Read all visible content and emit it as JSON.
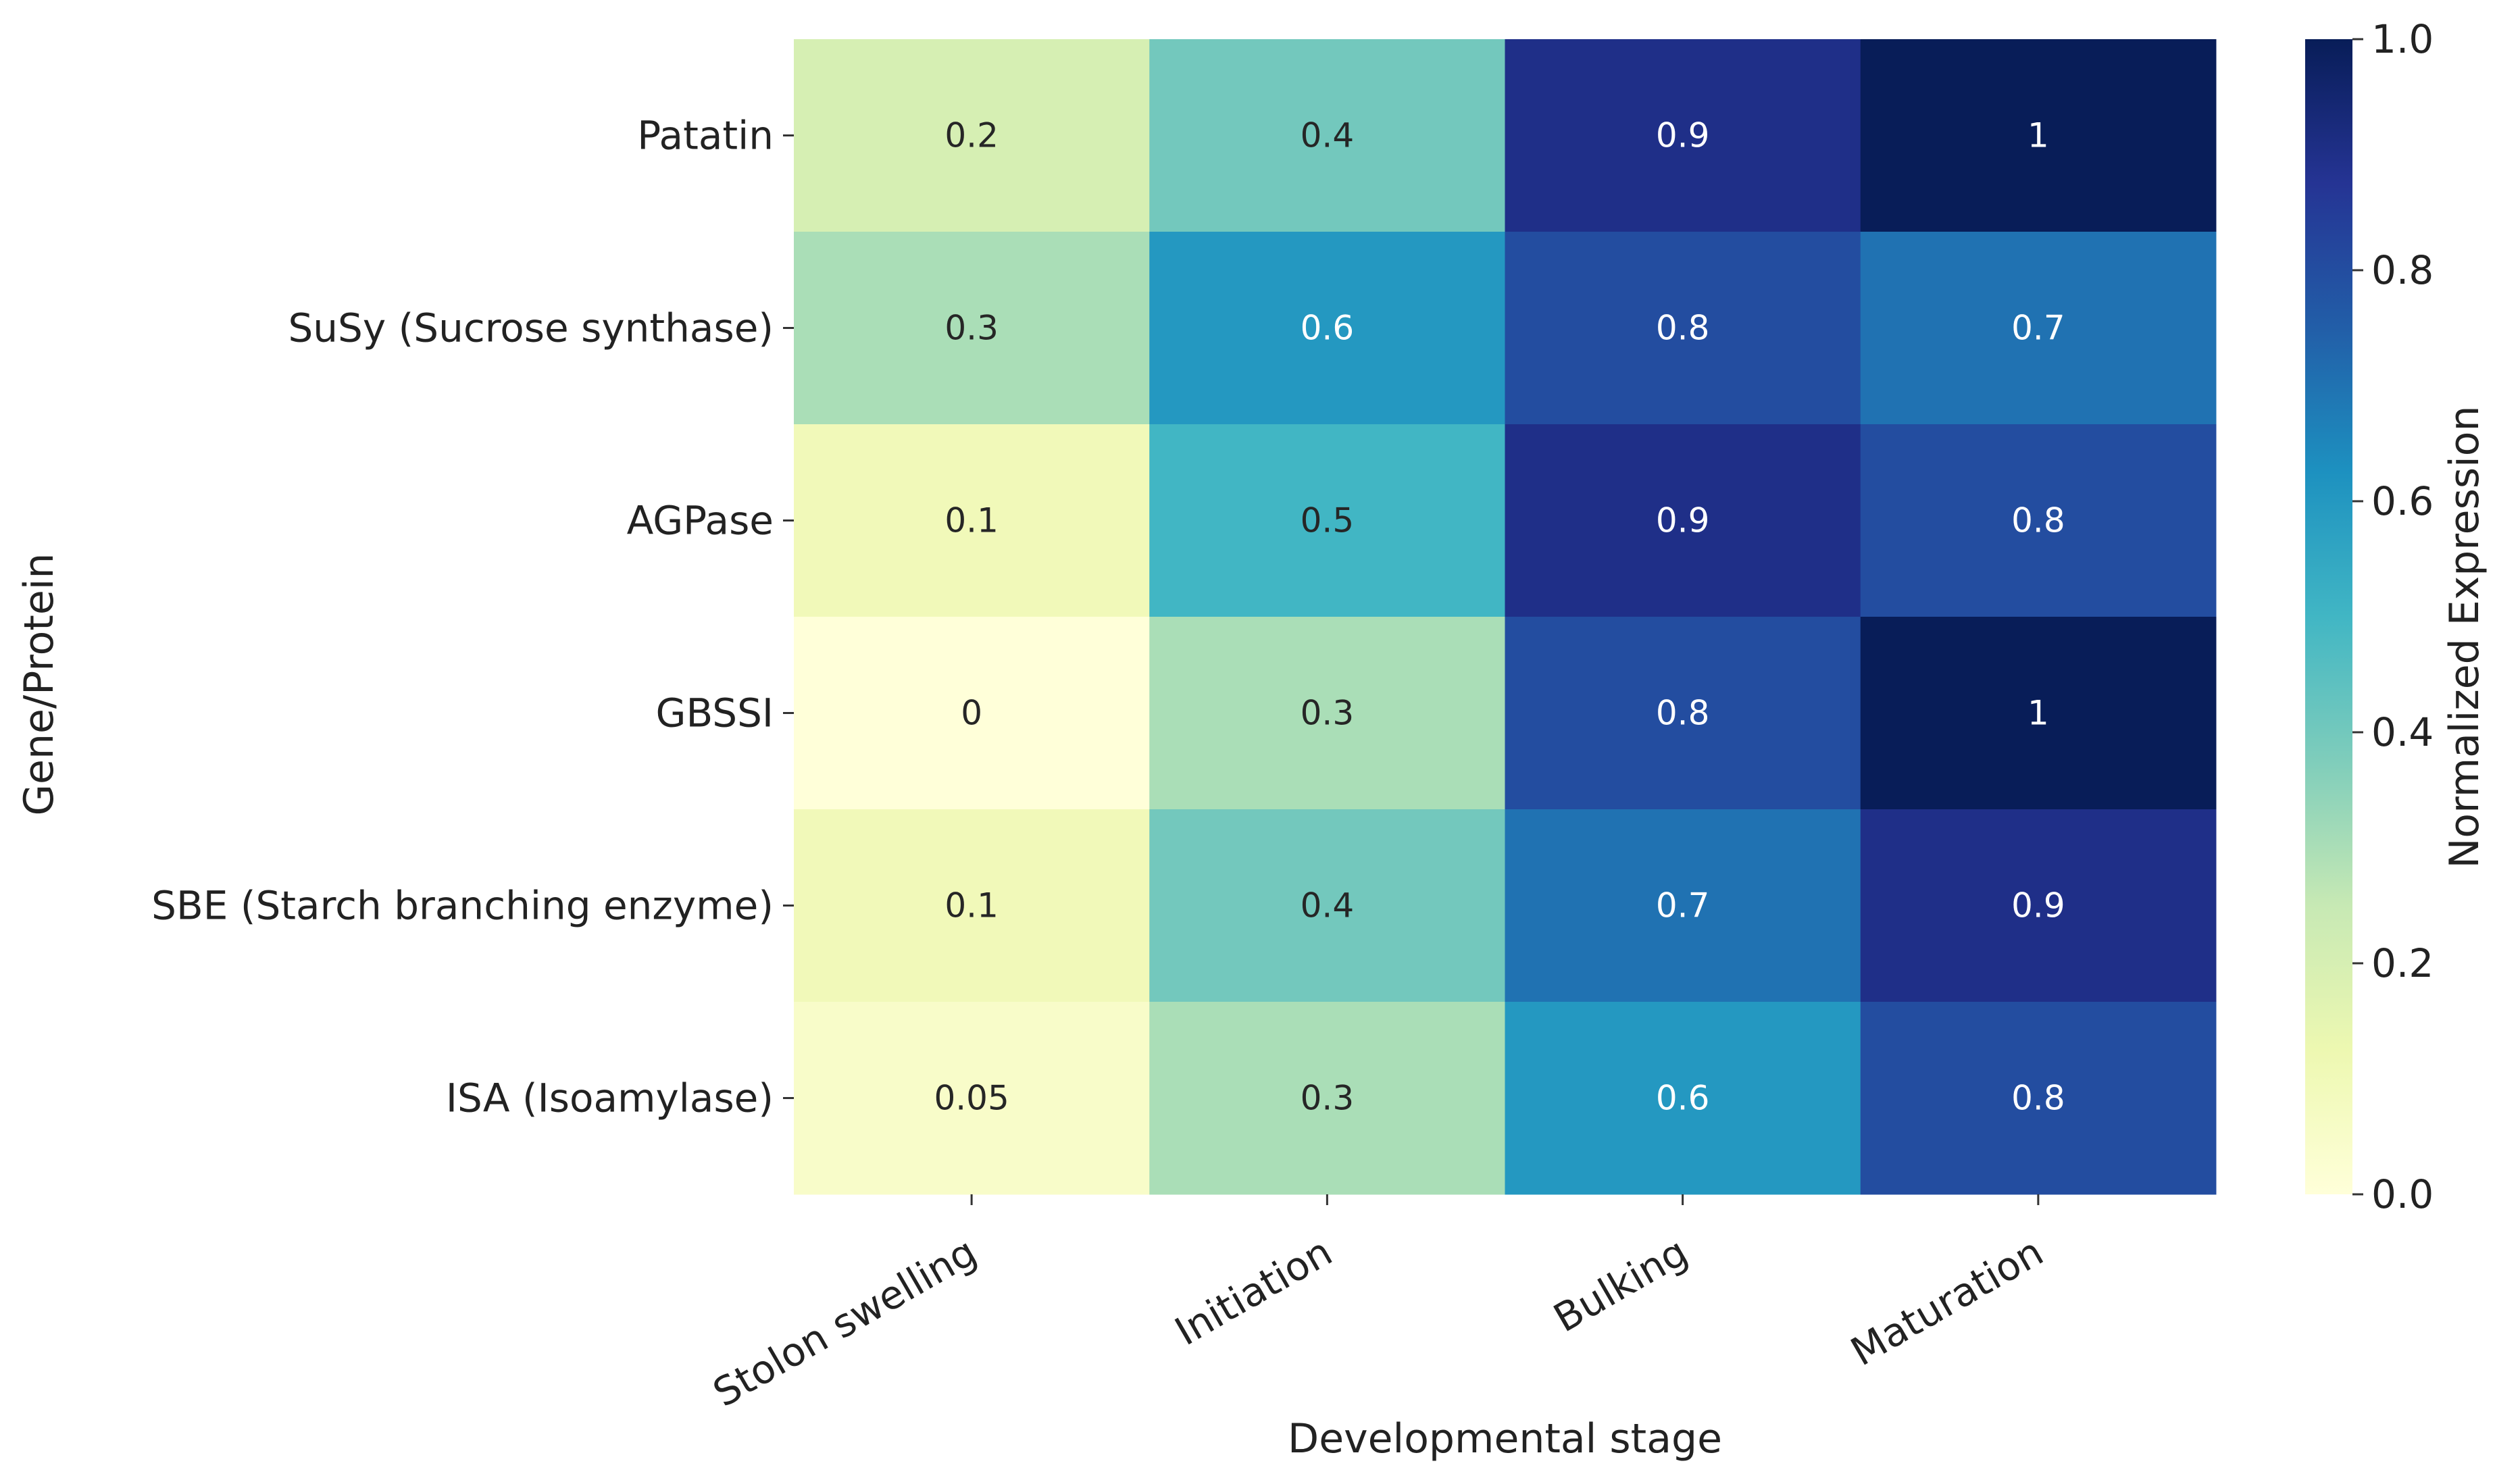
{
  "chart_data": {
    "type": "heatmap",
    "xlabel": "Developmental stage",
    "ylabel": "Gene/Protein",
    "x_categories": [
      "Stolon swelling",
      "Initiation",
      "Bulking",
      "Maturation"
    ],
    "y_categories": [
      "Patatin",
      "SuSy (Sucrose synthase)",
      "AGPase",
      "GBSSI",
      "SBE (Starch branching enzyme)",
      "ISA (Isoamylase)"
    ],
    "values": [
      [
        0.2,
        0.4,
        0.9,
        1.0
      ],
      [
        0.3,
        0.6,
        0.8,
        0.7
      ],
      [
        0.1,
        0.5,
        0.9,
        0.8
      ],
      [
        0.0,
        0.3,
        0.8,
        1.0
      ],
      [
        0.1,
        0.4,
        0.7,
        0.9
      ],
      [
        0.05,
        0.3,
        0.6,
        0.8
      ]
    ],
    "annotations": [
      [
        "0.2",
        "0.4",
        "0.9",
        "1"
      ],
      [
        "0.3",
        "0.6",
        "0.8",
        "0.7"
      ],
      [
        "0.1",
        "0.5",
        "0.9",
        "0.8"
      ],
      [
        "0",
        "0.3",
        "0.8",
        "1"
      ],
      [
        "0.1",
        "0.4",
        "0.7",
        "0.9"
      ],
      [
        "0.05",
        "0.3",
        "0.6",
        "0.8"
      ]
    ],
    "colormap": "YlGnBu",
    "colormap_stops": [
      "#ffffd9",
      "#edf8b1",
      "#c7e9b4",
      "#7fcdbb",
      "#41b6c4",
      "#1d91c0",
      "#225ea8",
      "#253494",
      "#081d58"
    ],
    "vmin": 0.0,
    "vmax": 1.0,
    "colorbar": {
      "label": "Normalized Expression",
      "ticks": [
        0.0,
        0.2,
        0.4,
        0.6,
        0.8,
        1.0
      ],
      "tick_labels": [
        "0.0",
        "0.2",
        "0.4",
        "0.6",
        "0.8",
        "1.0"
      ]
    }
  }
}
